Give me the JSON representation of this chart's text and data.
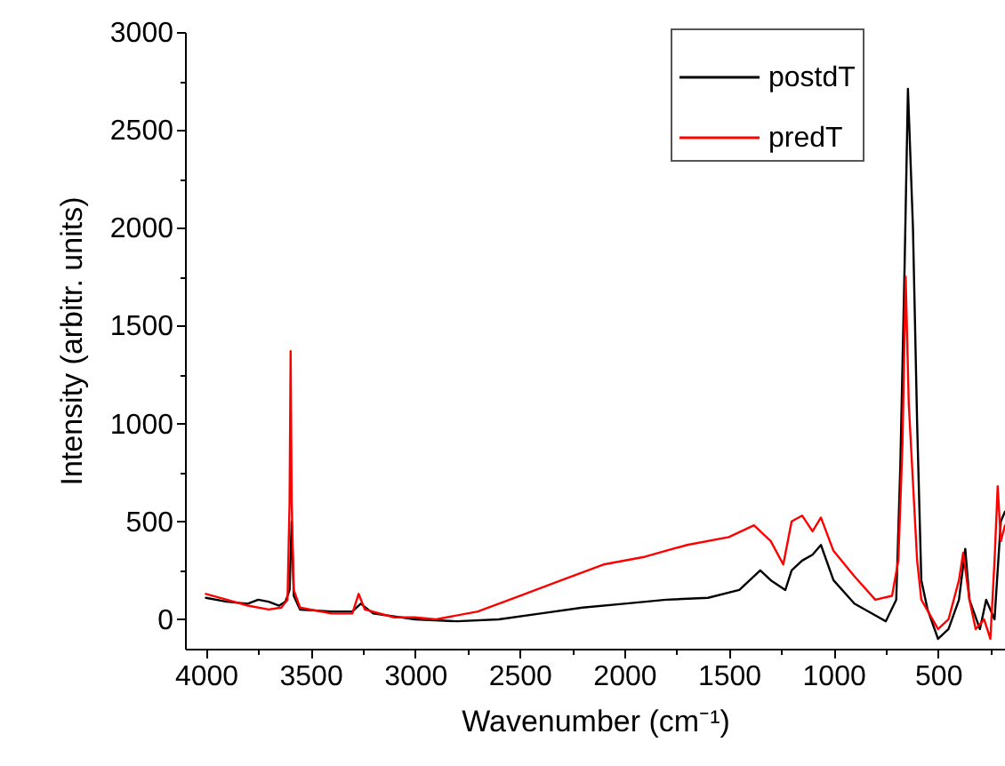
{
  "chart_data": {
    "type": "line",
    "xlabel": "Wavenumber (cm⁻¹)",
    "ylabel": "Intensity (arbitr. units)",
    "xlim": [
      4100,
      180
    ],
    "ylim": [
      -150,
      3000
    ],
    "xticks": [
      4000,
      {
        "value": 3750,
        "label": null
      },
      3500,
      {
        "value": 3250,
        "label": null
      },
      3000,
      {
        "value": 2750,
        "label": null
      },
      2500,
      {
        "value": 2250,
        "label": null
      },
      2000,
      {
        "value": 1750,
        "label": null
      },
      1500,
      {
        "value": 1250,
        "label": null
      },
      1000,
      {
        "value": 750,
        "label": null
      },
      500,
      {
        "value": 250,
        "label": null
      }
    ],
    "yticks": [
      0,
      {
        "value": 250,
        "label": null
      },
      500,
      {
        "value": 750,
        "label": null
      },
      1000,
      {
        "value": 1250,
        "label": null
      },
      1500,
      {
        "value": 1750,
        "label": null
      },
      2000,
      {
        "value": 2250,
        "label": null
      },
      2500,
      {
        "value": 2750,
        "label": null
      },
      3000
    ],
    "grid": false,
    "legend": "top right",
    "line_style": "solid",
    "marker": "none",
    "series": [
      {
        "name": "postdT",
        "color": "#000000",
        "x": [
          4000,
          3900,
          3800,
          3750,
          3700,
          3650,
          3620,
          3600,
          3590,
          3580,
          3550,
          3400,
          3300,
          3260,
          3200,
          3000,
          2800,
          2600,
          2400,
          2200,
          2000,
          1800,
          1600,
          1450,
          1350,
          1300,
          1230,
          1200,
          1150,
          1100,
          1060,
          1000,
          900,
          800,
          750,
          700,
          680,
          660,
          644,
          620,
          600,
          580,
          550,
          500,
          450,
          400,
          370,
          350,
          300,
          270,
          230,
          200,
          180
        ],
        "values": [
          110,
          90,
          80,
          100,
          90,
          70,
          90,
          150,
          500,
          120,
          50,
          40,
          40,
          80,
          30,
          0,
          -10,
          0,
          30,
          60,
          80,
          100,
          110,
          150,
          250,
          200,
          150,
          250,
          300,
          330,
          380,
          200,
          80,
          20,
          -10,
          100,
          800,
          1800,
          2710,
          2000,
          1000,
          200,
          50,
          -100,
          -50,
          100,
          360,
          100,
          -50,
          100,
          0,
          500,
          550
        ]
      },
      {
        "name": "predT",
        "color": "#ff0000",
        "x": [
          4000,
          3900,
          3800,
          3700,
          3640,
          3610,
          3600,
          3595,
          3590,
          3580,
          3550,
          3400,
          3300,
          3270,
          3240,
          3100,
          3000,
          2900,
          2700,
          2500,
          2300,
          2100,
          1900,
          1700,
          1500,
          1380,
          1300,
          1240,
          1200,
          1150,
          1100,
          1060,
          1000,
          900,
          800,
          720,
          690,
          670,
          655,
          640,
          620,
          600,
          580,
          500,
          450,
          400,
          380,
          350,
          320,
          280,
          250,
          230,
          215,
          200,
          180
        ],
        "values": [
          130,
          100,
          70,
          50,
          60,
          100,
          600,
          1370,
          600,
          150,
          60,
          30,
          30,
          130,
          50,
          10,
          10,
          0,
          40,
          120,
          200,
          280,
          320,
          380,
          420,
          480,
          400,
          280,
          500,
          530,
          450,
          520,
          350,
          220,
          100,
          120,
          300,
          900,
          1750,
          1100,
          700,
          300,
          100,
          -50,
          0,
          200,
          340,
          100,
          -50,
          0,
          -100,
          300,
          680,
          400,
          480
        ]
      }
    ]
  }
}
